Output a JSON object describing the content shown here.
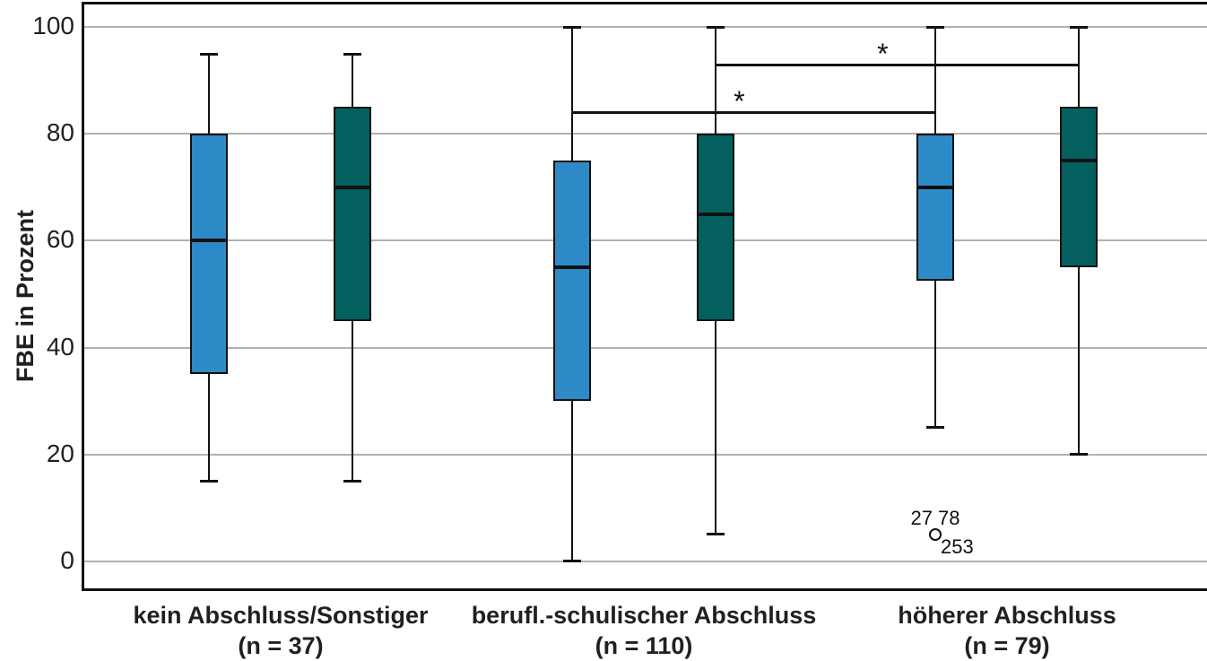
{
  "chart_data": {
    "type": "boxplot",
    "title": "",
    "xlabel": "",
    "ylabel": "FBE in Prozent",
    "ylim": [
      0,
      100
    ],
    "yticks": [
      0,
      20,
      40,
      60,
      80,
      100
    ],
    "grid": "horizontal gridlines at each y tick",
    "legend": "none",
    "categories": [
      {
        "label": "kein Abschluss/Sonstiger",
        "n": "(n = 37)"
      },
      {
        "label": "berufl.-schulischer Abschluss",
        "n": "(n = 110)"
      },
      {
        "label": "höherer Abschluss",
        "n": "(n = 79)"
      }
    ],
    "series": [
      {
        "name": "left-box-light-blue",
        "color": "#2E8AC6",
        "boxes": [
          {
            "whisker_low": 15,
            "q1": 35,
            "median": 60,
            "q3": 80,
            "whisker_high": 95
          },
          {
            "whisker_low": 0,
            "q1": 30,
            "median": 55,
            "q3": 75,
            "whisker_high": 100
          },
          {
            "whisker_low": 25,
            "q1": 52.5,
            "median": 70,
            "q3": 80,
            "whisker_high": 100
          }
        ]
      },
      {
        "name": "right-box-dark-teal",
        "color": "#03605F",
        "boxes": [
          {
            "whisker_low": 15,
            "q1": 45,
            "median": 70,
            "q3": 85,
            "whisker_high": 95
          },
          {
            "whisker_low": 5,
            "q1": 45,
            "median": 65,
            "q3": 80,
            "whisker_high": 100
          },
          {
            "whisker_low": 20,
            "q1": 55,
            "median": 75,
            "q3": 85,
            "whisker_high": 100
          }
        ]
      }
    ],
    "outliers": [
      {
        "category": 2,
        "series": 0,
        "value": 5,
        "label_above": "27 78",
        "label_below": "253"
      }
    ],
    "significance_brackets": [
      {
        "from_category": 1,
        "from_series": 1,
        "to_category": 2,
        "to_series": 1,
        "at_value": 93,
        "label": "*"
      },
      {
        "from_category": 1,
        "from_series": 0,
        "to_category": 2,
        "to_series": 0,
        "at_value": 84,
        "label": "*"
      }
    ],
    "colors": {
      "box_border": "#111111",
      "median": "#111111",
      "whisker": "#111111",
      "gridline": "#b1b1b1",
      "axis": "#111111",
      "text": "#231f20"
    }
  }
}
